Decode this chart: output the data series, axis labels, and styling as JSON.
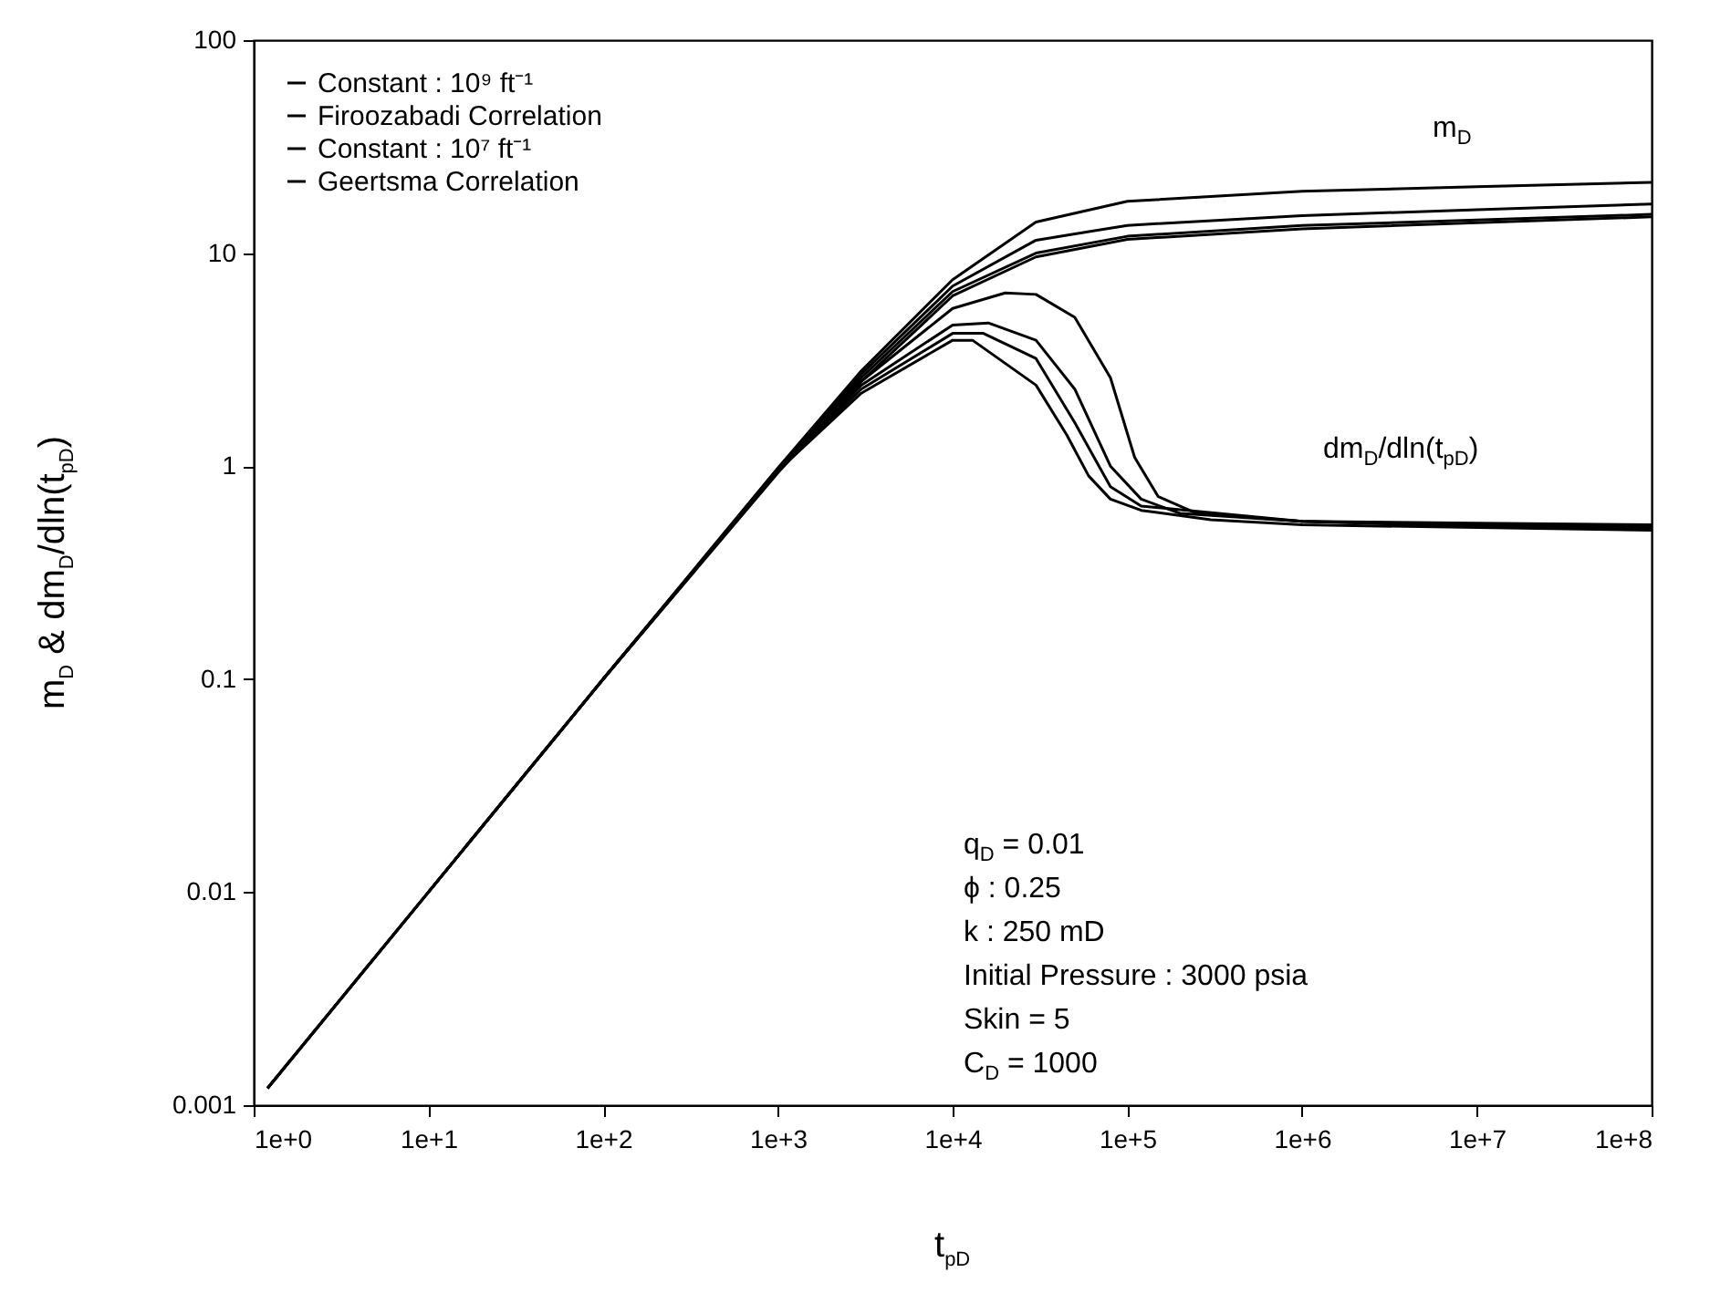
{
  "chart_data": {
    "type": "line",
    "xlabel": "t$_{pD}$",
    "ylabel": "m$_{D}$  &  dm$_{D}$/dln(t$_{pD}$)",
    "log": "xy",
    "grid": false,
    "legend": "top left",
    "line_style": "solid",
    "xlim": [
      1,
      100000000
    ],
    "ylim": [
      0.001,
      100
    ],
    "xticks": [
      {
        "value": 1,
        "label": "1e+0"
      },
      {
        "value": 10,
        "label": "1e+1"
      },
      {
        "value": 100,
        "label": "1e+2"
      },
      {
        "value": 1000,
        "label": "1e+3"
      },
      {
        "value": 10000,
        "label": "1e+4"
      },
      {
        "value": 100000,
        "label": "1e+5"
      },
      {
        "value": 1000000,
        "label": "1e+6"
      },
      {
        "value": 10000000,
        "label": "1e+7"
      },
      {
        "value": 100000000,
        "label": "1e+8"
      }
    ],
    "yticks": [
      0.001,
      0.01,
      0.1,
      1,
      10,
      100
    ],
    "series": [
      {
        "name": "Constant : 10⁹ ft⁻¹",
        "color": "#000000",
        "x": [
          1.2,
          10,
          100,
          1000,
          3000,
          10000,
          30000,
          100000,
          1000000,
          10000000,
          100000000
        ],
        "values": [
          0.0012,
          0.01,
          0.1,
          0.98,
          2.8,
          7.5,
          14,
          17.5,
          19.5,
          20.5,
          21.5
        ]
      },
      {
        "name": "Firoozabadi Correlation",
        "color": "#000000",
        "x": [
          1.2,
          10,
          100,
          1000,
          3000,
          10000,
          30000,
          100000,
          1000000,
          10000000,
          100000000
        ],
        "values": [
          0.0012,
          0.01,
          0.1,
          0.97,
          2.7,
          7,
          11.5,
          13.5,
          15,
          16,
          17
        ]
      },
      {
        "name": "Constant : 10⁷ ft⁻¹",
        "color": "#000000",
        "x": [
          10,
          100,
          1000,
          3000,
          10000,
          30000,
          100000,
          1000000,
          10000000,
          100000000
        ],
        "values": [
          0.01,
          0.1,
          0.95,
          2.6,
          6.6,
          10,
          12,
          13.5,
          14.3,
          15.2
        ]
      },
      {
        "name": "Geertsma Correlation",
        "color": "#000000",
        "x": [
          1.2,
          10,
          100,
          1000,
          3000,
          10000,
          30000,
          100000,
          1000000,
          10000000,
          100000000
        ],
        "values": [
          0.0012,
          0.01,
          0.1,
          0.93,
          2.5,
          6.3,
          9.6,
          11.6,
          13,
          13.9,
          14.8
        ]
      },
      {
        "color": "#000000",
        "x": [
          1.2,
          10,
          100,
          1000,
          3000,
          10000,
          20000,
          30000,
          50000,
          80000,
          110000,
          150000,
          250000,
          1000000,
          10000000,
          100000000
        ],
        "values": [
          0.0012,
          0.01,
          0.1,
          0.95,
          2.5,
          5.5,
          6.5,
          6.4,
          5,
          2.6,
          1.1,
          0.72,
          0.6,
          0.55,
          0.54,
          0.53
        ]
      },
      {
        "color": "#000000",
        "x": [
          10,
          100,
          1000,
          3000,
          10000,
          16000,
          30000,
          50000,
          80000,
          120000,
          200000,
          1000000,
          10000000,
          100000000
        ],
        "values": [
          0.01,
          0.1,
          0.95,
          2.4,
          4.6,
          4.7,
          3.9,
          2.3,
          1,
          0.7,
          0.6,
          0.55,
          0.53,
          0.52
        ]
      },
      {
        "color": "#000000",
        "x": [
          100,
          1000,
          3000,
          10000,
          15000,
          30000,
          50000,
          80000,
          120000,
          1000000,
          10000000,
          100000000
        ],
        "values": [
          0.1,
          0.95,
          2.3,
          4.2,
          4.2,
          3.2,
          1.6,
          0.8,
          0.65,
          0.55,
          0.52,
          0.51
        ]
      },
      {
        "color": "#000000",
        "x": [
          1000,
          3000,
          10000,
          13000,
          30000,
          45000,
          60000,
          80000,
          120000,
          300000,
          1000000,
          100000000
        ],
        "values": [
          0.95,
          2.2,
          3.9,
          3.9,
          2.4,
          1.4,
          0.9,
          0.7,
          0.62,
          0.56,
          0.53,
          0.5
        ]
      }
    ],
    "annotations": [
      "m$_{D}$",
      "dm$_{D}$/dln(t$_{pD}$)",
      "q$_{D}$ = 0.01",
      "ϕ : 0.25",
      "k : 250 mD",
      "Initial Pressure : 3000 psia",
      "Skin = 5",
      "C$_{D}$ = 1000"
    ]
  }
}
